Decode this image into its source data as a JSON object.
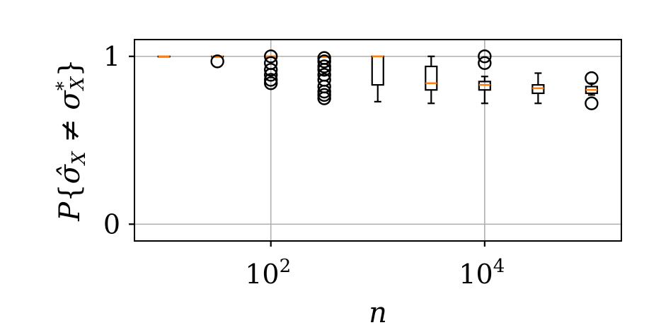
{
  "chart_data": {
    "type": "box",
    "xlabel": "n",
    "ylabel": "P{σ̂_X ≠ σ*_X}",
    "xscale": "log",
    "xlim": [
      5.3,
      190000
    ],
    "ylim": [
      -0.1,
      1.1
    ],
    "grid": true,
    "x_ticks": [
      {
        "value": 100,
        "base": "10",
        "exp": "2"
      },
      {
        "value": 10000,
        "base": "10",
        "exp": "4"
      }
    ],
    "y_ticks": [
      {
        "value": 0,
        "label": "0"
      },
      {
        "value": 1,
        "label": "1"
      }
    ],
    "colors": {
      "box": "#000000",
      "median": "#ff7f0e",
      "grid": "#b0b0b0"
    },
    "boxes": [
      {
        "x": 10,
        "q1": 1.0,
        "median": 1.0,
        "q3": 1.0,
        "whislo": 1.0,
        "whishi": 1.0,
        "fliers": []
      },
      {
        "x": 31.6,
        "q1": 1.0,
        "median": 1.0,
        "q3": 1.0,
        "whislo": 1.0,
        "whishi": 1.0,
        "fliers": [
          0.97
        ]
      },
      {
        "x": 100,
        "q1": 1.0,
        "median": 1.0,
        "q3": 1.0,
        "whislo": 1.0,
        "whishi": 1.0,
        "fliers": [
          1.0,
          0.96,
          0.92,
          0.89,
          0.86,
          0.84
        ]
      },
      {
        "x": 316,
        "q1": 1.0,
        "median": 1.0,
        "q3": 1.0,
        "whislo": 1.0,
        "whishi": 1.0,
        "fliers": [
          0.99,
          0.97,
          0.94,
          0.92,
          0.89,
          0.86,
          0.82,
          0.79,
          0.77,
          0.75
        ]
      },
      {
        "x": 1000,
        "q1": 0.83,
        "median": 1.0,
        "q3": 1.0,
        "whislo": 0.73,
        "whishi": 1.0,
        "fliers": []
      },
      {
        "x": 3162,
        "q1": 0.8,
        "median": 0.84,
        "q3": 0.94,
        "whislo": 0.72,
        "whishi": 1.0,
        "fliers": []
      },
      {
        "x": 10000,
        "q1": 0.8,
        "median": 0.83,
        "q3": 0.85,
        "whislo": 0.72,
        "whishi": 0.88,
        "fliers": [
          1.0,
          0.96
        ]
      },
      {
        "x": 31623,
        "q1": 0.78,
        "median": 0.81,
        "q3": 0.83,
        "whislo": 0.72,
        "whishi": 0.9,
        "fliers": []
      },
      {
        "x": 100000,
        "q1": 0.78,
        "median": 0.8,
        "q3": 0.82,
        "whislo": 0.77,
        "whishi": 0.84,
        "fliers": [
          0.87,
          0.72
        ]
      }
    ]
  }
}
